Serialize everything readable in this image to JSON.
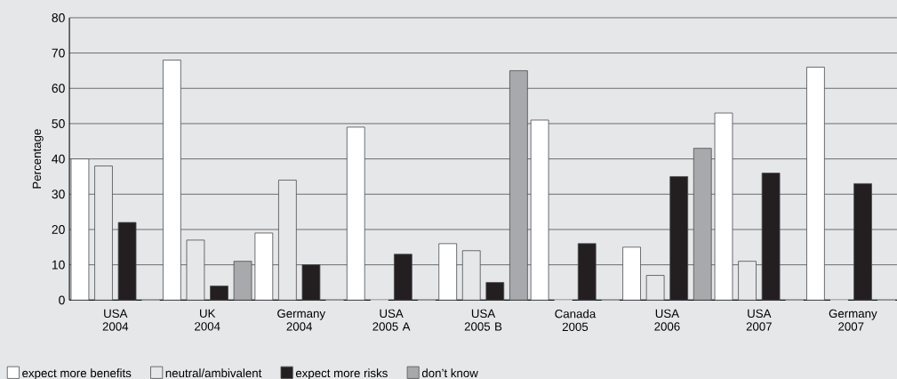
{
  "chart_data": {
    "type": "bar",
    "ylabel": "Percentage",
    "categories": [
      "USA 2004",
      "UK 2004",
      "Germany 2004",
      "USA 2005 A",
      "USA 2005 B",
      "Canada 2005",
      "USA 2006",
      "USA 2007",
      "Germany 2007"
    ],
    "series": [
      {
        "name": "expect more benefits",
        "color": "#ffffff",
        "values": [
          40,
          68,
          19,
          49,
          16,
          51,
          15,
          53,
          66
        ]
      },
      {
        "name": "neutral/ambivalent",
        "color": "#e6e7e9",
        "values": [
          38,
          17,
          34,
          0,
          14,
          0,
          7,
          11,
          0
        ]
      },
      {
        "name": "expect more risks",
        "color": "#231f20",
        "values": [
          22,
          4,
          10,
          13,
          5,
          16,
          35,
          36,
          33
        ]
      },
      {
        "name": "don’t know",
        "color": "#a7a9ac",
        "values": [
          0,
          11,
          0,
          0,
          65,
          0,
          43,
          0,
          0
        ]
      }
    ],
    "ylim": [
      0,
      80
    ],
    "yticks": [
      0,
      10,
      20,
      30,
      40,
      50,
      60,
      70,
      80
    ],
    "grid": "y",
    "legend": "bottom left"
  }
}
